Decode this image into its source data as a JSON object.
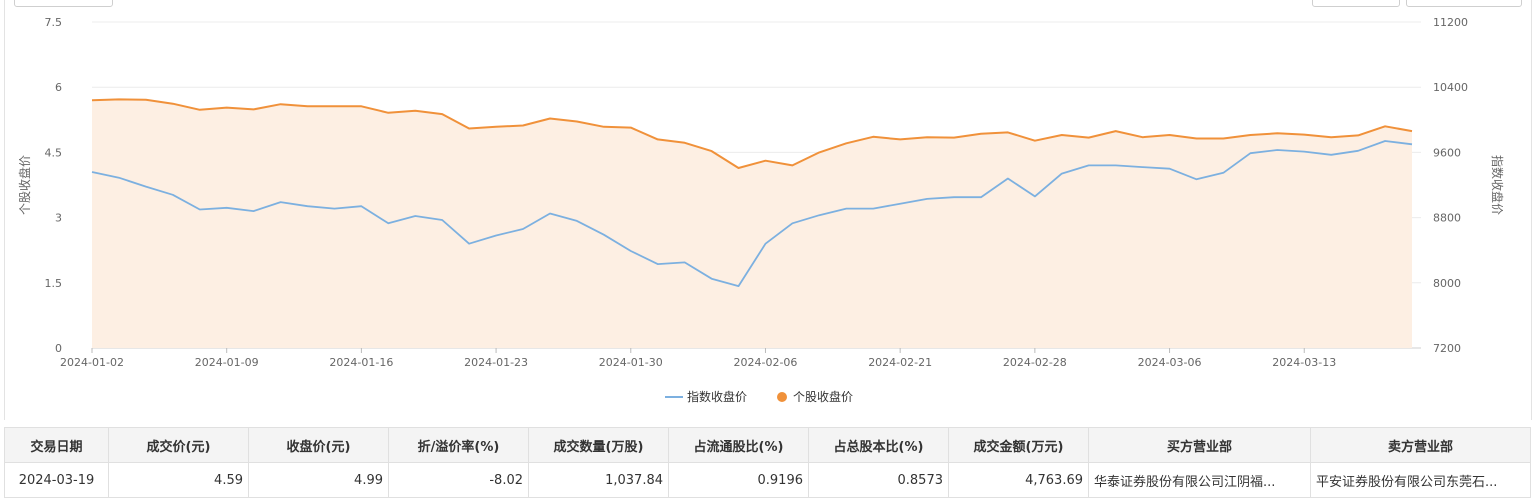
{
  "colors": {
    "stock_line": "#f0913a",
    "stock_area": "#fdefe3",
    "index_line": "#7cb0e0",
    "grid": "#ececec",
    "axis_text": "#666666"
  },
  "chart_data": {
    "type": "line",
    "x_ticks": [
      "2024-01-02",
      "2024-01-09",
      "2024-01-16",
      "2024-01-23",
      "2024-01-30",
      "2024-02-06",
      "2024-02-21",
      "2024-02-28",
      "2024-03-06",
      "2024-03-13"
    ],
    "y_left": {
      "label": "个股收盘价",
      "ticks": [
        "0",
        "1.5",
        "3",
        "4.5",
        "6",
        "7.5"
      ],
      "min": 0,
      "max": 7.5
    },
    "y_right": {
      "label": "指数收盘价",
      "ticks": [
        "7200",
        "8000",
        "8800",
        "9600",
        "10400",
        "11200"
      ],
      "min": 7200,
      "max": 11200
    },
    "legend": [
      "指数收盘价",
      "个股收盘价"
    ],
    "legend_position": "bottom-center",
    "grid": true,
    "series": [
      {
        "name": "个股收盘价",
        "axis": "left",
        "area": true,
        "values": [
          5.7,
          5.72,
          5.71,
          5.62,
          5.48,
          5.53,
          5.49,
          5.61,
          5.56,
          5.56,
          5.56,
          5.41,
          5.46,
          5.38,
          5.05,
          5.09,
          5.12,
          5.28,
          5.21,
          5.09,
          5.07,
          4.8,
          4.72,
          4.53,
          4.14,
          4.31,
          4.2,
          4.5,
          4.71,
          4.86,
          4.8,
          4.85,
          4.84,
          4.93,
          4.96,
          4.77,
          4.9,
          4.84,
          4.99,
          4.85,
          4.9,
          4.82,
          4.82,
          4.9,
          4.94,
          4.91,
          4.85,
          4.89,
          5.1,
          4.99
        ]
      },
      {
        "name": "指数收盘价",
        "axis": "right",
        "area": false,
        "values": [
          9360,
          9290,
          9180,
          9080,
          8900,
          8920,
          8880,
          8990,
          8940,
          8910,
          8940,
          8730,
          8820,
          8770,
          8480,
          8580,
          8660,
          8850,
          8760,
          8590,
          8390,
          8230,
          8250,
          8050,
          7960,
          8480,
          8730,
          8830,
          8910,
          8910,
          8970,
          9030,
          9050,
          9050,
          9280,
          9060,
          9340,
          9440,
          9440,
          9420,
          9400,
          9270,
          9350,
          9590,
          9630,
          9610,
          9570,
          9620,
          9740,
          9700
        ]
      }
    ]
  },
  "table": {
    "headers": [
      "交易日期",
      "成交价(元)",
      "收盘价(元)",
      "折/溢价率(%)",
      "成交数量(万股)",
      "占流通股比(%)",
      "占总股本比(%)",
      "成交金额(万元)",
      "买方营业部",
      "卖方营业部"
    ],
    "rows": [
      [
        "2024-03-19",
        "4.59",
        "4.99",
        "-8.02",
        "1,037.84",
        "0.9196",
        "0.8573",
        "4,763.69",
        "华泰证券股份有限公司江阴福...",
        "平安证券股份有限公司东莞石..."
      ]
    ]
  }
}
